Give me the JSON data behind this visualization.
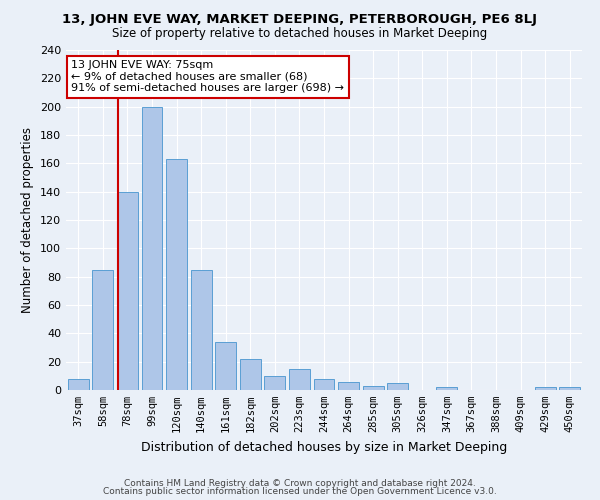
{
  "title1": "13, JOHN EVE WAY, MARKET DEEPING, PETERBOROUGH, PE6 8LJ",
  "title2": "Size of property relative to detached houses in Market Deeping",
  "xlabel": "Distribution of detached houses by size in Market Deeping",
  "ylabel": "Number of detached properties",
  "bar_labels": [
    "37sqm",
    "58sqm",
    "78sqm",
    "99sqm",
    "120sqm",
    "140sqm",
    "161sqm",
    "182sqm",
    "202sqm",
    "223sqm",
    "244sqm",
    "264sqm",
    "285sqm",
    "305sqm",
    "326sqm",
    "347sqm",
    "367sqm",
    "388sqm",
    "409sqm",
    "429sqm",
    "450sqm"
  ],
  "bar_values": [
    8,
    85,
    140,
    200,
    163,
    85,
    34,
    22,
    10,
    15,
    8,
    6,
    3,
    5,
    0,
    2,
    0,
    0,
    0,
    2,
    2
  ],
  "bar_color": "#aec6e8",
  "bar_edge_color": "#5a9fd4",
  "vline_color": "#cc0000",
  "annotation_line1": "13 JOHN EVE WAY: 75sqm",
  "annotation_line2": "← 9% of detached houses are smaller (68)",
  "annotation_line3": "91% of semi-detached houses are larger (698) →",
  "annotation_box_color": "#ffffff",
  "annotation_box_edge": "#cc0000",
  "footer1": "Contains HM Land Registry data © Crown copyright and database right 2024.",
  "footer2": "Contains public sector information licensed under the Open Government Licence v3.0.",
  "ylim": [
    0,
    240
  ],
  "yticks": [
    0,
    20,
    40,
    60,
    80,
    100,
    120,
    140,
    160,
    180,
    200,
    220,
    240
  ],
  "bg_color": "#eaf0f8",
  "grid_color": "#ffffff",
  "title1_fontsize": 9.5,
  "title2_fontsize": 8.5,
  "xlabel_fontsize": 9,
  "ylabel_fontsize": 8.5,
  "tick_fontsize": 7.5,
  "ytick_fontsize": 8,
  "footer_fontsize": 6.5,
  "annot_fontsize": 8
}
